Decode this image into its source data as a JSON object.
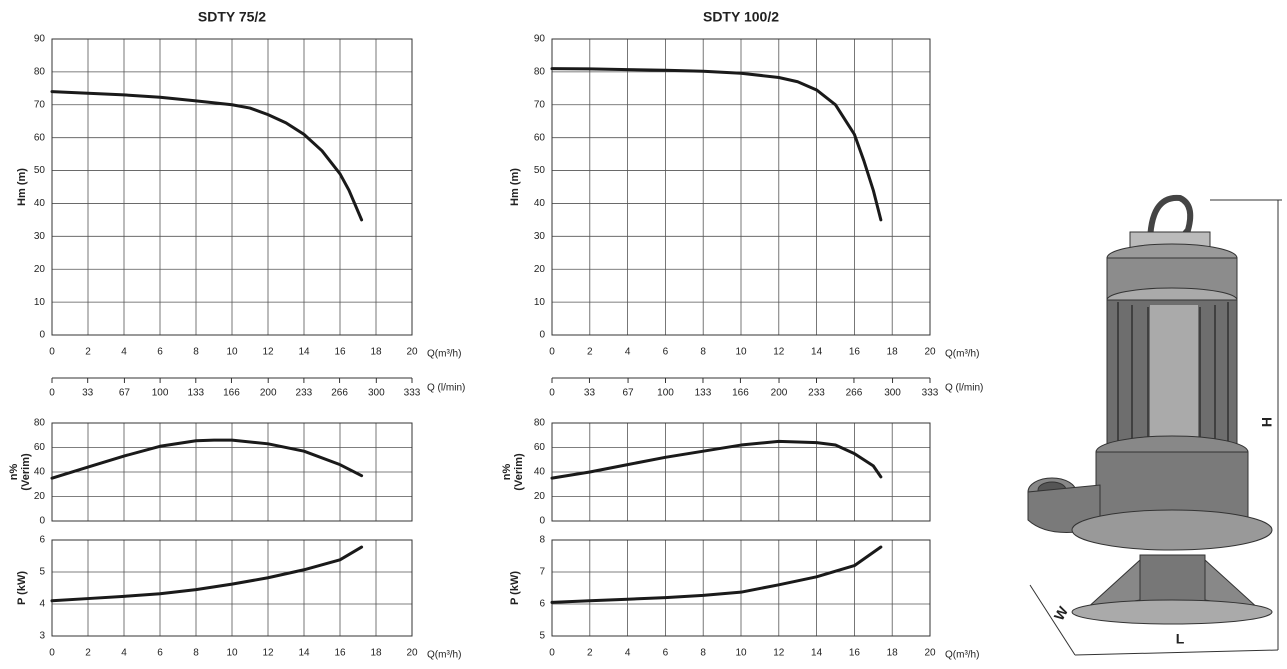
{
  "chart_data": [
    {
      "type": "line",
      "title": "SDTY 75/2",
      "y_label": [
        "Hm (m)"
      ],
      "x_label": "Q(m³/h)",
      "x": [
        0,
        2,
        4,
        6,
        8,
        10,
        11,
        12,
        13,
        14,
        15,
        16,
        16.5,
        17.2
      ],
      "series": [
        {
          "color": "#1a1a1a",
          "values": [
            74,
            73.5,
            73,
            72.3,
            71.2,
            70,
            69,
            67,
            64.5,
            61,
            56,
            49,
            44,
            35
          ]
        }
      ],
      "xlim": [
        0,
        20
      ],
      "xticks": [
        0,
        2,
        4,
        6,
        8,
        10,
        12,
        14,
        16,
        18,
        20
      ],
      "xtick_labels": true,
      "ylim": [
        0,
        90
      ],
      "yticks": [
        0,
        10,
        20,
        30,
        40,
        50,
        60,
        70,
        80,
        90
      ],
      "grid": true,
      "x2_label": "Q (l/min)",
      "x2lim": [
        0,
        333
      ],
      "x2ticks": [
        0,
        33,
        67,
        100,
        133,
        166,
        200,
        233,
        266,
        300,
        333
      ]
    },
    {
      "type": "line",
      "y_label": [
        "n%",
        "(Verim)"
      ],
      "x": [
        0,
        2,
        4,
        6,
        8,
        9,
        10,
        12,
        14,
        16,
        17.2
      ],
      "series": [
        {
          "color": "#1a1a1a",
          "values": [
            35,
            44,
            53,
            61,
            65.5,
            66,
            66,
            63,
            57,
            46,
            37
          ]
        }
      ],
      "xlim": [
        0,
        20
      ],
      "xticks": [
        0,
        2,
        4,
        6,
        8,
        10,
        12,
        14,
        16,
        18,
        20
      ],
      "xtick_labels": false,
      "ylim": [
        0,
        80
      ],
      "yticks": [
        0,
        20,
        40,
        60,
        80
      ],
      "grid": true
    },
    {
      "type": "line",
      "y_label": [
        "P  (kW)"
      ],
      "x_label": "Q(m³/h)",
      "x": [
        0,
        2,
        4,
        6,
        8,
        10,
        12,
        14,
        16,
        17.2
      ],
      "series": [
        {
          "color": "#1a1a1a",
          "values": [
            4.1,
            4.17,
            4.24,
            4.32,
            4.45,
            4.62,
            4.82,
            5.07,
            5.38,
            5.78
          ]
        }
      ],
      "xlim": [
        0,
        20
      ],
      "xticks": [
        0,
        2,
        4,
        6,
        8,
        10,
        12,
        14,
        16,
        18,
        20
      ],
      "xtick_labels": true,
      "ylim": [
        3,
        6
      ],
      "yticks": [
        3,
        4,
        5,
        6
      ],
      "grid": true
    },
    {
      "type": "line",
      "title": "SDTY 100/2",
      "y_label": [
        "Hm (m)"
      ],
      "x_label": "Q(m³/h)",
      "x": [
        0,
        2,
        4,
        6,
        8,
        10,
        12,
        13,
        14,
        15,
        16,
        16.5,
        17,
        17.4
      ],
      "series": [
        {
          "color": "#1a1a1a",
          "values": [
            81,
            80.9,
            80.7,
            80.5,
            80.2,
            79.6,
            78.3,
            77,
            74.5,
            70,
            61,
            53,
            44,
            35
          ]
        }
      ],
      "xlim": [
        0,
        20
      ],
      "xticks": [
        0,
        2,
        4,
        6,
        8,
        10,
        12,
        14,
        16,
        18,
        20
      ],
      "xtick_labels": true,
      "ylim": [
        0,
        90
      ],
      "yticks": [
        0,
        10,
        20,
        30,
        40,
        50,
        60,
        70,
        80,
        90
      ],
      "grid": true,
      "x2_label": "Q (l/min)",
      "x2lim": [
        0,
        333
      ],
      "x2ticks": [
        0,
        33,
        67,
        100,
        133,
        166,
        200,
        233,
        266,
        300,
        333
      ]
    },
    {
      "type": "line",
      "y_label": [
        "n%",
        "(Verim)"
      ],
      "x": [
        0,
        2,
        4,
        6,
        8,
        10,
        12,
        14,
        15,
        16,
        17,
        17.4
      ],
      "series": [
        {
          "color": "#1a1a1a",
          "values": [
            35,
            40,
            46,
            52,
            57,
            62,
            65,
            64,
            62,
            55,
            45,
            36
          ]
        }
      ],
      "xlim": [
        0,
        20
      ],
      "xticks": [
        0,
        2,
        4,
        6,
        8,
        10,
        12,
        14,
        16,
        18,
        20
      ],
      "xtick_labels": false,
      "ylim": [
        0,
        80
      ],
      "yticks": [
        0,
        20,
        40,
        60,
        80
      ],
      "grid": true
    },
    {
      "type": "line",
      "y_label": [
        "P  (kW)"
      ],
      "x_label": "Q(m³/h)",
      "x": [
        0,
        2,
        4,
        6,
        8,
        10,
        12,
        14,
        16,
        17.4
      ],
      "series": [
        {
          "color": "#1a1a1a",
          "values": [
            6.05,
            6.1,
            6.15,
            6.2,
            6.27,
            6.37,
            6.6,
            6.85,
            7.2,
            7.78
          ]
        }
      ],
      "xlim": [
        0,
        20
      ],
      "xticks": [
        0,
        2,
        4,
        6,
        8,
        10,
        12,
        14,
        16,
        18,
        20
      ],
      "xtick_labels": true,
      "ylim": [
        5,
        8
      ],
      "yticks": [
        5,
        6,
        7,
        8
      ],
      "grid": true
    }
  ],
  "figure": {
    "dimensions": [
      "H",
      "W",
      "L"
    ]
  }
}
